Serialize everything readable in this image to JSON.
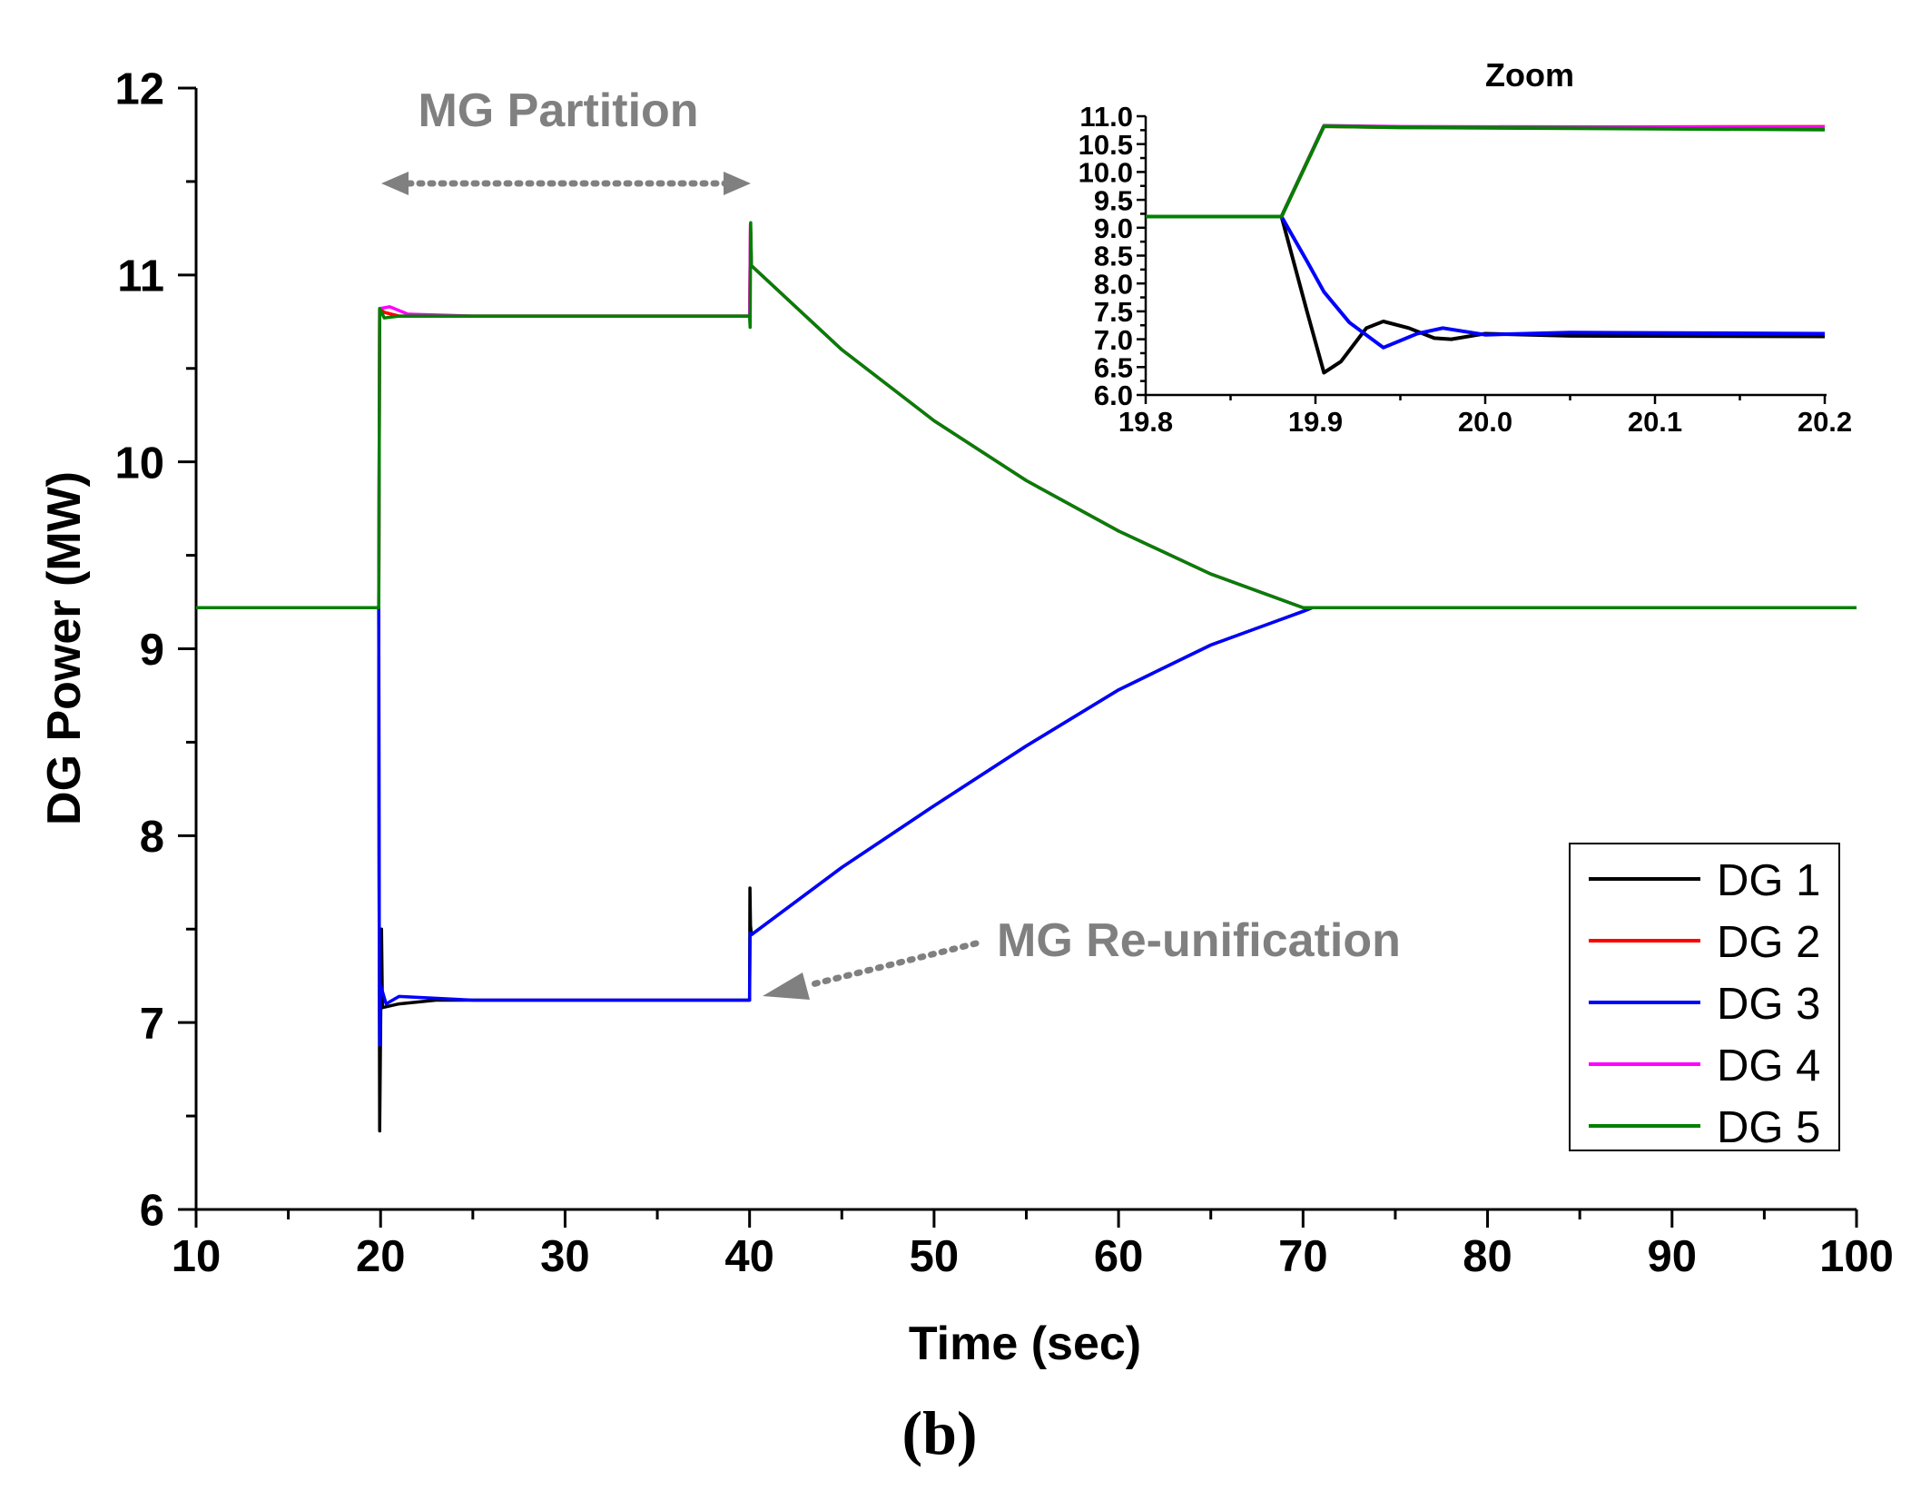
{
  "figure_label": "(b)",
  "chart_data": [
    {
      "id": "main",
      "type": "line",
      "title": "",
      "xlabel": "Time (sec)",
      "ylabel": "DG Power (MW)",
      "xlim": [
        10,
        100
      ],
      "ylim": [
        6,
        12
      ],
      "xticks": [
        "10",
        "20",
        "30",
        "40",
        "50",
        "60",
        "70",
        "80",
        "90",
        "100"
      ],
      "yticks": [
        "6",
        "7",
        "8",
        "9",
        "10",
        "11",
        "12"
      ],
      "annotations": {
        "partition": "MG Partition",
        "reunification": "MG Re-unification"
      },
      "series": [
        {
          "name": "DG 1",
          "color": "#000000",
          "x": [
            10,
            19.9,
            19.92,
            19.95,
            20.05,
            20.1,
            21,
            23,
            25,
            40,
            40.02,
            40.05,
            40.1,
            45,
            50,
            55,
            60,
            65,
            70,
            70.5,
            100
          ],
          "y": [
            9.22,
            9.22,
            7.8,
            6.42,
            7.5,
            7.08,
            7.1,
            7.12,
            7.12,
            7.12,
            7.72,
            7.52,
            7.47,
            7.83,
            8.16,
            8.48,
            8.78,
            9.02,
            9.2,
            9.22,
            9.22
          ]
        },
        {
          "name": "DG 2",
          "color": "#ff0000",
          "x": [
            10,
            19.9,
            19.95,
            20.2,
            21,
            25,
            40,
            40.05,
            40.1,
            45,
            50,
            55,
            60,
            65,
            70,
            70.5,
            100
          ],
          "y": [
            9.22,
            9.22,
            10.82,
            10.8,
            10.78,
            10.78,
            10.78,
            11.27,
            11.05,
            10.6,
            10.22,
            9.9,
            9.63,
            9.4,
            9.22,
            9.22,
            9.22
          ]
        },
        {
          "name": "DG 3",
          "color": "#0000ff",
          "x": [
            10,
            19.9,
            19.92,
            19.95,
            20.0,
            20.3,
            21,
            25,
            40,
            40.03,
            40.1,
            45,
            50,
            55,
            60,
            65,
            70,
            70.5,
            100
          ],
          "y": [
            9.22,
            9.22,
            7.8,
            6.88,
            7.2,
            7.1,
            7.14,
            7.12,
            7.12,
            7.48,
            7.47,
            7.83,
            8.16,
            8.48,
            8.78,
            9.02,
            9.2,
            9.22,
            9.22
          ]
        },
        {
          "name": "DG 4",
          "color": "#ff00ff",
          "x": [
            10,
            19.9,
            19.95,
            20.5,
            21.5,
            25,
            40,
            40.05,
            40.1,
            45,
            50,
            55,
            60,
            65,
            70,
            70.5,
            100
          ],
          "y": [
            9.22,
            9.22,
            10.82,
            10.83,
            10.79,
            10.78,
            10.78,
            11.27,
            11.05,
            10.6,
            10.22,
            9.9,
            9.63,
            9.4,
            9.22,
            9.22,
            9.22
          ]
        },
        {
          "name": "DG 5",
          "color": "#008000",
          "x": [
            10,
            19.9,
            19.95,
            20.2,
            21,
            25,
            40,
            40.03,
            40.06,
            40.1,
            45,
            50,
            55,
            60,
            65,
            70,
            70.5,
            100
          ],
          "y": [
            9.22,
            9.22,
            10.82,
            10.77,
            10.78,
            10.78,
            10.78,
            10.72,
            11.28,
            11.05,
            10.6,
            10.22,
            9.9,
            9.63,
            9.4,
            9.22,
            9.22,
            9.22
          ]
        }
      ]
    },
    {
      "id": "zoom",
      "type": "line",
      "title": "Zoom",
      "xlabel": "",
      "ylabel": "",
      "xlim": [
        19.8,
        20.2
      ],
      "ylim": [
        6.0,
        11.0
      ],
      "xticks": [
        "19.8",
        "19.9",
        "20.0",
        "20.1",
        "20.2"
      ],
      "yticks": [
        "6.0",
        "6.5",
        "7.0",
        "7.5",
        "8.0",
        "8.5",
        "9.0",
        "9.5",
        "10.0",
        "10.5",
        "11.0"
      ],
      "series": [
        {
          "name": "DG 1",
          "color": "#000000",
          "x": [
            19.8,
            19.88,
            19.895,
            19.905,
            19.915,
            19.93,
            19.94,
            19.955,
            19.97,
            19.98,
            20.0,
            20.05,
            20.2
          ],
          "y": [
            9.2,
            9.2,
            7.5,
            6.4,
            6.6,
            7.2,
            7.32,
            7.2,
            7.02,
            7.0,
            7.1,
            7.06,
            7.05
          ]
        },
        {
          "name": "DG 2",
          "color": "#ff0000",
          "x": [
            19.8,
            19.88,
            19.905,
            19.95,
            20.2
          ],
          "y": [
            9.2,
            9.2,
            10.82,
            10.8,
            10.81
          ]
        },
        {
          "name": "DG 3",
          "color": "#0000ff",
          "x": [
            19.8,
            19.88,
            19.895,
            19.905,
            19.92,
            19.94,
            19.96,
            19.975,
            20.0,
            20.05,
            20.2
          ],
          "y": [
            9.2,
            9.2,
            8.4,
            7.85,
            7.3,
            6.85,
            7.1,
            7.2,
            7.08,
            7.12,
            7.1
          ]
        },
        {
          "name": "DG 4",
          "color": "#ff00ff",
          "x": [
            19.8,
            19.88,
            19.905,
            19.95,
            20.2
          ],
          "y": [
            9.2,
            9.2,
            10.83,
            10.81,
            10.8
          ]
        },
        {
          "name": "DG 5",
          "color": "#008000",
          "x": [
            19.8,
            19.88,
            19.905,
            19.95,
            20.2
          ],
          "y": [
            9.2,
            9.2,
            10.82,
            10.8,
            10.76
          ]
        }
      ]
    }
  ]
}
